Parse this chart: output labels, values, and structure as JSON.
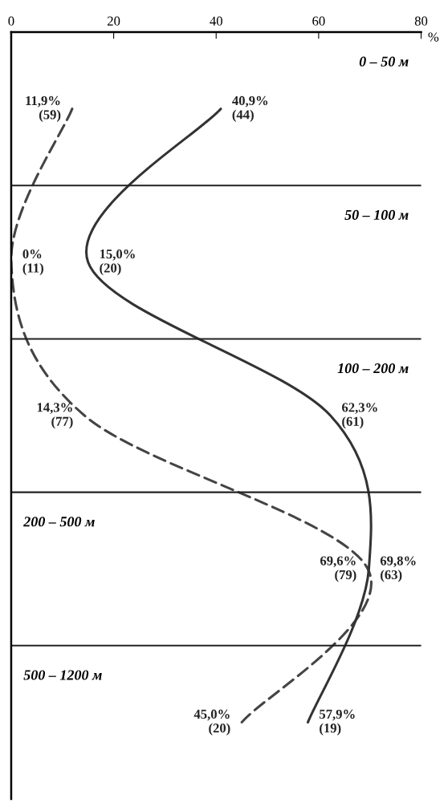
{
  "chart_data": {
    "type": "line",
    "orientation": "horizontal",
    "xlabel": "%",
    "xlim": [
      0,
      80
    ],
    "xticks": [
      0,
      20,
      40,
      60,
      80
    ],
    "categories": [
      "0 – 50 м",
      "50 – 100 м",
      "100 – 200 м",
      "200 – 500 м",
      "500 – 1200 м"
    ],
    "series": [
      {
        "color": "#333333",
        "line_style": "solid",
        "values": [
          40.9,
          15.0,
          62.3,
          69.8,
          57.9
        ],
        "value_labels": [
          "40,9%\n(44)",
          "15,0%\n(20)",
          "62,3%\n(61)",
          "69,8%\n(63)",
          "57,9%\n(19)"
        ]
      },
      {
        "color": "#444444",
        "line_style": "dashed",
        "values": [
          11.9,
          0,
          14.3,
          69.6,
          45.0
        ],
        "value_labels": [
          "11,9%\n(59)",
          "0%\n(11)",
          "14,3%\n(77)",
          "69,6%\n(79)",
          "45,0%\n(20)"
        ]
      }
    ],
    "grid": false,
    "legend": false
  }
}
